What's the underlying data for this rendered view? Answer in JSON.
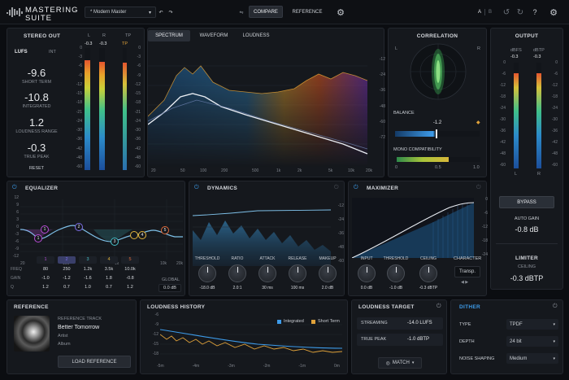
{
  "app": {
    "title_line1": "MASTERING",
    "title_line2": "SUITE",
    "preset": "* Modern Master",
    "compare": "COMPARE",
    "reference": "REFERENCE",
    "ab_a": "A",
    "ab_b": "B",
    "help": "?"
  },
  "stereo_out": {
    "title": "STEREO OUT",
    "lufs": "LUFS",
    "int": "INT",
    "short_term_val": "-9.6",
    "short_term_lbl": "SHORT TERM",
    "integrated_val": "-10.8",
    "integrated_lbl": "INTEGRATED",
    "range_val": "1.2",
    "range_lbl": "LOUDNESS RANGE",
    "tp_val": "-0.3",
    "tp_lbl": "TRUE PEAK",
    "reset": "RESET"
  },
  "meter": {
    "l": "L",
    "r": "R",
    "tp": "TP",
    "l_val": "-0.3",
    "r_val": "-0.3",
    "tp_val": "TP",
    "scale": [
      "0",
      "-3",
      "-6",
      "-9",
      "-12",
      "-15",
      "-18",
      "-21",
      "-24",
      "-30",
      "-36",
      "-42",
      "-48",
      "-60"
    ],
    "l_level": 0.9,
    "r_level": 0.89
  },
  "spectrum": {
    "tabs": [
      "SPECTRUM",
      "WAVEFORM",
      "LOUDNESS"
    ],
    "y_ticks": [
      "-12",
      "-24",
      "-36",
      "-48",
      "-60",
      "-72"
    ],
    "x_ticks": [
      "20",
      "50",
      "100",
      "200",
      "500",
      "1k",
      "2k",
      "5k",
      "10k",
      "20k"
    ]
  },
  "correlation": {
    "title": "CORRELATION",
    "l": "L",
    "r": "R",
    "balance": "BALANCE",
    "balance_val": "-1.2",
    "mono": "MONO COMPATIBILITY",
    "mono_ticks": [
      "0",
      "0.5",
      "1.0"
    ],
    "mono_level": 0.62
  },
  "output": {
    "title": "OUTPUT",
    "dbfs": "dBFS",
    "dbtp": "dBTP",
    "l_val": "-0.3",
    "r_val": "-0.3",
    "l": "L",
    "r": "R",
    "scale": [
      "0",
      "-6",
      "-12",
      "-18",
      "-24",
      "-30",
      "-36",
      "-42",
      "-48",
      "-60"
    ],
    "l_level": 0.9,
    "r_level": 0.9,
    "bypass": "BYPASS",
    "auto_gain": "AUTO GAIN",
    "auto_gain_val": "-0.8 dB",
    "limiter": "LIMITER",
    "ceiling": "CEILING",
    "ceiling_val": "-0.3 dBTP"
  },
  "eq": {
    "title": "EQUALIZER",
    "y_ticks": [
      "12",
      "9",
      "6",
      "3",
      "0",
      "-3",
      "-6",
      "-9",
      "-12"
    ],
    "x_ticks": [
      "20",
      "100",
      "1k",
      "10k",
      "20k"
    ],
    "bands": [
      "1",
      "2",
      "3",
      "4",
      "5"
    ],
    "band_colors": [
      "#b84cd6",
      "#7d6fe8",
      "#46c0c9",
      "#e0b23a",
      "#e06a3a"
    ],
    "freq_lbl": "FREQ",
    "gain_lbl": "GAIN",
    "q_lbl": "Q",
    "freq": [
      "80",
      "250",
      "1.2k",
      "3.5k",
      "10.0k"
    ],
    "gain": [
      "-1.0",
      "-1.2",
      "-1.6",
      "1.8",
      "-0.8"
    ],
    "q": [
      "1.2",
      "0.7",
      "1.0",
      "0.7",
      "1.2"
    ],
    "global": "GLOBAL",
    "global_val": "0.0 dB"
  },
  "dynamics": {
    "title": "DYNAMICS",
    "y_ticks": [
      "-12",
      "-24",
      "-36",
      "-48",
      "-60"
    ],
    "knobs": [
      "THRESHOLD",
      "RATIO",
      "ATTACK",
      "RELEASE",
      "MAKEUP"
    ],
    "values": [
      "-18.0 dB",
      "2.0:1",
      "30 ms",
      "100 ms",
      "2.0 dB"
    ]
  },
  "maximizer": {
    "title": "MAXIMIZER",
    "y_ticks": [
      "0",
      "-6",
      "-12",
      "-18",
      "-24"
    ],
    "knobs": [
      "INPUT",
      "THRESHOLD",
      "CEILING",
      "CHARACTER"
    ],
    "values": [
      "0.0 dB",
      "-1.0 dB",
      "-0.3 dBTP"
    ],
    "character_val": "Transp."
  },
  "reference": {
    "title": "REFERENCE",
    "track_lbl": "REFERENCE TRACK",
    "track": "Better Tomorrow",
    "artist": "Artist",
    "album": "Album",
    "load": "LOAD REFERENCE"
  },
  "history": {
    "title": "LOUDNESS HISTORY",
    "legend_integrated": "Integrated",
    "legend_short": "Short Term",
    "y_ticks": [
      "-6",
      "-9",
      "-12",
      "-15",
      "-18"
    ],
    "x_ticks": [
      "-5m",
      "-4m",
      "-3m",
      "-2m",
      "-1m",
      "0m"
    ],
    "integrated_color": "#3d9be9",
    "short_color": "#e0a23a"
  },
  "target": {
    "title": "LOUDNESS TARGET",
    "streaming": "STREAMING",
    "streaming_val": "-14.0 LUFS",
    "true_peak": "TRUE PEAK",
    "true_peak_val": "-1.0 dBTP",
    "match": "MATCH"
  },
  "dither": {
    "title": "DITHER",
    "type": "TYPE",
    "type_val": "TPDF",
    "depth": "DEPTH",
    "depth_val": "24 bit",
    "shaping": "NOISE SHAPING",
    "shaping_val": "Medium"
  }
}
